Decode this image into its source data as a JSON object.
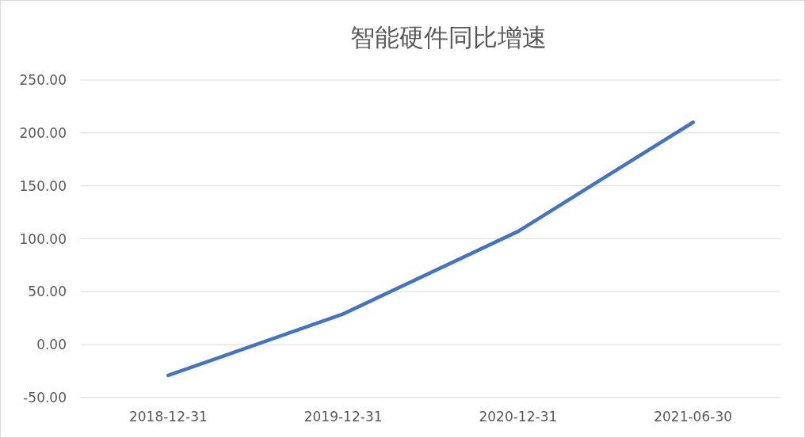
{
  "chart_data": {
    "type": "line",
    "title": "智能硬件同比增速",
    "categories": [
      "2018-12-31",
      "2019-12-31",
      "2020-12-31",
      "2021-06-30"
    ],
    "series": [
      {
        "color": "#4472c4",
        "values": [
          -29,
          29,
          107,
          210
        ]
      }
    ],
    "ylim": [
      -50,
      250
    ],
    "yticks": [
      {
        "value": -50,
        "label": "-50.00"
      },
      {
        "value": 0,
        "label": "0.00"
      },
      {
        "value": 50,
        "label": "50.00"
      },
      {
        "value": 100,
        "label": "100.00"
      },
      {
        "value": 150,
        "label": "150.00"
      },
      {
        "value": 200,
        "label": "200.00"
      },
      {
        "value": 250,
        "label": "250.00"
      }
    ],
    "grid": "y",
    "marker": "none",
    "line_style": "solid"
  }
}
